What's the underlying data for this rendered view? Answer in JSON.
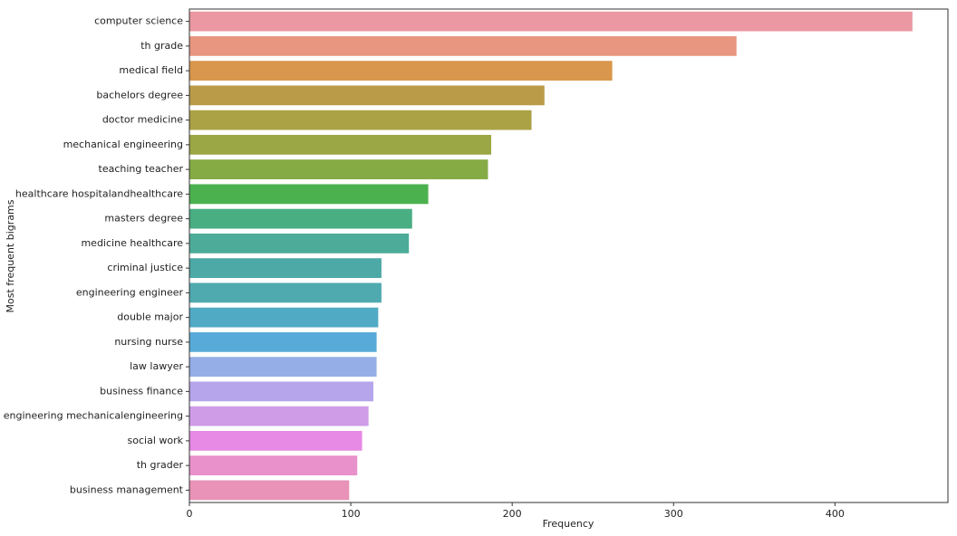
{
  "chart_data": {
    "type": "barh",
    "xlabel": "Frequency",
    "ylabel": "Most frequent bigrams",
    "categories": [
      "computer science",
      "th grade",
      "medical field",
      "bachelors degree",
      "doctor medicine",
      "mechanical engineering",
      "teaching teacher",
      "healthcare hospitalandhealthcare",
      "masters degree",
      "medicine healthcare",
      "criminal justice",
      "engineering engineer",
      "double major",
      "nursing nurse",
      "law lawyer",
      "business finance",
      "engineering mechanicalengineering",
      "social work",
      "th grader",
      "business management"
    ],
    "values": [
      448,
      339,
      262,
      220,
      212,
      187,
      185,
      148,
      138,
      136,
      119,
      119,
      117,
      116,
      116,
      114,
      111,
      107,
      104,
      99
    ],
    "colors": [
      "#eb98a2",
      "#e99680",
      "#d8974c",
      "#ba9c48",
      "#aba246",
      "#9aa744",
      "#85ab45",
      "#4bb14e",
      "#4aae83",
      "#4cac99",
      "#4da9a6",
      "#4faab0",
      "#51aac4",
      "#58abd8",
      "#95aee7",
      "#b6a5ea",
      "#cf9de8",
      "#e68ae5",
      "#e991cb",
      "#e893b7"
    ],
    "xlim": [
      0,
      470
    ],
    "xticks": [
      0,
      100,
      200,
      300,
      400
    ]
  }
}
